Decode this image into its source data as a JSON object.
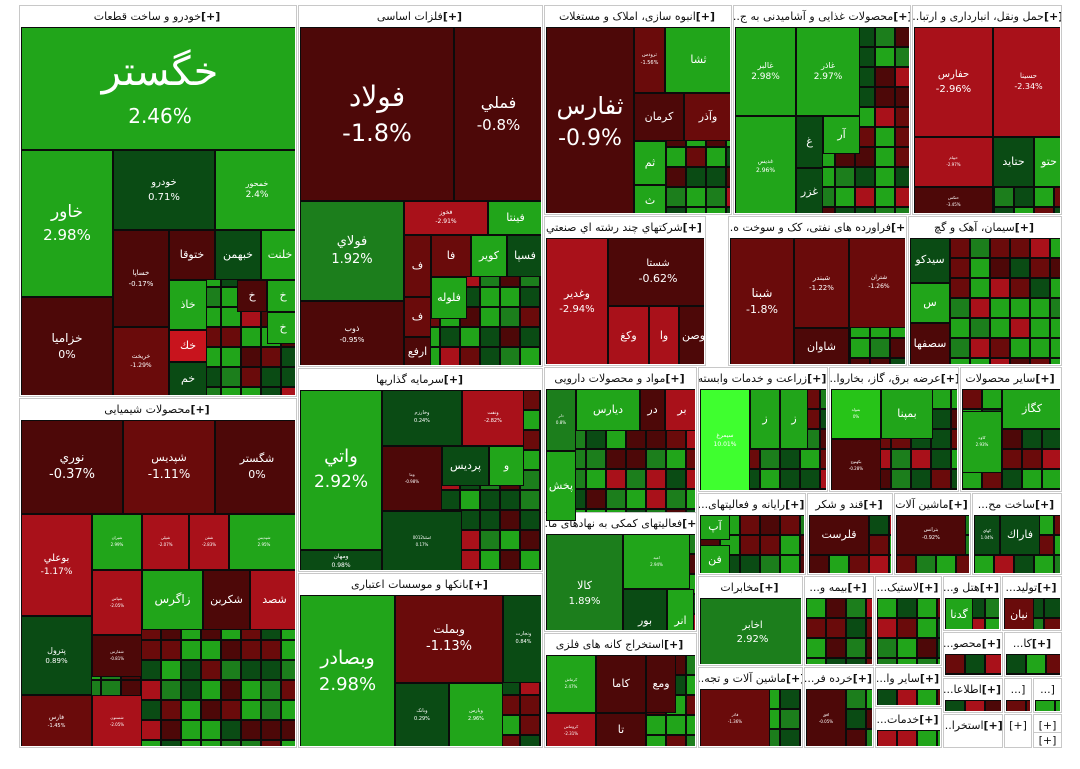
{
  "colors": {
    "dg": "#4d0808",
    "dr": "#6a0b0b",
    "r": "#a9111a",
    "br": "#c8141d",
    "dgn": "#0a4b14",
    "g": "#1c7e1c",
    "lg": "#21a51a",
    "bg": "#27c418",
    "neon": "#3fff2f"
  },
  "sections": [
    {
      "key": "auto",
      "title": "خودرو و ساخت قطعات",
      "plus": "[+]",
      "tiles": [
        {
          "name": "خگستر",
          "pct": "2.46%",
          "c": "lg"
        },
        {
          "name": "خاور",
          "pct": "2.98%",
          "c": "lg"
        },
        {
          "name": "خزاميا",
          "pct": "0%",
          "c": "dg"
        },
        {
          "name": "خودرو",
          "pct": "0.71%",
          "c": "dgn"
        },
        {
          "name": "خمحور",
          "pct": "2.4%",
          "c": "lg"
        },
        {
          "name": "خساپا",
          "pct": "-0.17%",
          "c": "dg"
        },
        {
          "name": "ختوقا",
          "pct": "",
          "c": "dg"
        },
        {
          "name": "خبهمن",
          "pct": "",
          "c": "dgn"
        },
        {
          "name": "خلنت",
          "pct": "",
          "c": "lg"
        },
        {
          "name": "خاذ",
          "pct": "",
          "c": "lg"
        },
        {
          "name": "خ",
          "pct": "",
          "c": "dg"
        },
        {
          "name": "خ",
          "pct": "",
          "c": "lg"
        },
        {
          "name": "خريخت",
          "pct": "-1.29%",
          "c": "dr"
        },
        {
          "name": "خك",
          "pct": "",
          "c": "br"
        },
        {
          "name": "خم",
          "pct": "",
          "c": "dgn"
        },
        {
          "name": "خ",
          "pct": "",
          "c": "lg"
        }
      ]
    },
    {
      "key": "metal",
      "title": "فلزات اساسی",
      "plus": "[+]",
      "tiles": [
        {
          "name": "فولاد",
          "pct": "-1.8%",
          "c": "dg"
        },
        {
          "name": "فملي",
          "pct": "-0.8%",
          "c": "dg"
        },
        {
          "name": "فولاي",
          "pct": "1.92%",
          "c": "g"
        },
        {
          "name": "ذوب",
          "pct": "-0.95%",
          "c": "dg"
        },
        {
          "name": "فخوز",
          "pct": "-2.91%",
          "c": "r"
        },
        {
          "name": "فينتا",
          "pct": "",
          "c": "lg"
        },
        {
          "name": "ف",
          "pct": "",
          "c": "dr"
        },
        {
          "name": "فا",
          "pct": "",
          "c": "dr"
        },
        {
          "name": "كوير",
          "pct": "",
          "c": "lg"
        },
        {
          "name": "فسپا",
          "pct": "",
          "c": "dgn"
        },
        {
          "name": "فلوله",
          "pct": "",
          "c": "lg"
        },
        {
          "name": "ف",
          "pct": "",
          "c": "dr"
        },
        {
          "name": "ارفع",
          "pct": "",
          "c": "dg"
        }
      ]
    },
    {
      "key": "build",
      "title": "انبوه سازی، املاک و مستغلات",
      "plus": "[+]",
      "tiles": [
        {
          "name": "ثفارس",
          "pct": "-0.9%",
          "c": "dg"
        },
        {
          "name": "ثرودس",
          "pct": "-1.56%",
          "c": "dr"
        },
        {
          "name": "ثشا",
          "pct": "",
          "c": "lg"
        },
        {
          "name": "كرمان",
          "pct": "",
          "c": "dg"
        },
        {
          "name": "وآذر",
          "pct": "",
          "c": "dr"
        },
        {
          "name": "ثم",
          "pct": "",
          "c": "lg"
        },
        {
          "name": "ث",
          "pct": "",
          "c": "lg"
        }
      ]
    },
    {
      "key": "food",
      "title": "محصولات غذایی و آشامیدنی به ج...",
      "plus": "[+]",
      "tiles": [
        {
          "name": "غالبر",
          "pct": "2.98%",
          "c": "lg"
        },
        {
          "name": "غاذر",
          "pct": "2.97%",
          "c": "lg"
        },
        {
          "name": "غدیس",
          "pct": "2.96%",
          "c": "lg"
        },
        {
          "name": "غ",
          "pct": "",
          "c": "dgn"
        },
        {
          "name": "آر",
          "pct": "",
          "c": "lg"
        },
        {
          "name": "غزر",
          "pct": "",
          "c": "dgn"
        },
        {
          "name": "غ",
          "pct": "",
          "c": "lg"
        }
      ]
    },
    {
      "key": "trans",
      "title": "حمل ونقل، انبارداری و ارتبا...",
      "plus": "[+]",
      "tiles": [
        {
          "name": "حفارس",
          "pct": "-2.96%",
          "c": "r"
        },
        {
          "name": "حسينا",
          "pct": "-2.34%",
          "c": "r"
        },
        {
          "name": "حپيام",
          "pct": "-2.97%",
          "c": "r"
        },
        {
          "name": "حتايد",
          "pct": "",
          "c": "dgn"
        },
        {
          "name": "حتو",
          "pct": "",
          "c": "lg"
        },
        {
          "name": "حتكس",
          "pct": "-3.45%",
          "c": "dg"
        }
      ]
    },
    {
      "key": "chem",
      "title": "محصولات شیمیایی",
      "plus": "[+]",
      "tiles": [
        {
          "name": "نوري",
          "pct": "-0.37%",
          "c": "dg"
        },
        {
          "name": "شپديس",
          "pct": "-1.11%",
          "c": "dr"
        },
        {
          "name": "شگستر",
          "pct": "0%",
          "c": "dg"
        },
        {
          "name": "بوعلي",
          "pct": "-1.17%",
          "c": "r"
        },
        {
          "name": "پترول",
          "pct": "0.89%",
          "c": "dgn"
        },
        {
          "name": "فارس",
          "pct": "-1.45%",
          "c": "dr"
        },
        {
          "name": "شيران",
          "pct": "2.99%",
          "c": "lg"
        },
        {
          "name": "شپلي",
          "pct": "-2.07%",
          "c": "r"
        },
        {
          "name": "شفن",
          "pct": "-2.83%",
          "c": "r"
        },
        {
          "name": "شپدیس",
          "pct": "2.95%",
          "c": "lg"
        },
        {
          "name": "زاگرس",
          "pct": "",
          "c": "lg"
        },
        {
          "name": "شكربن",
          "pct": "",
          "c": "dg"
        },
        {
          "name": "شصد",
          "pct": "",
          "c": "r"
        },
        {
          "name": "شپاس",
          "pct": "-2.05%",
          "c": "r"
        },
        {
          "name": "شفارس",
          "pct": "-0.81%",
          "c": "dg"
        },
        {
          "name": "شستون",
          "pct": "-2.05%",
          "c": "r"
        }
      ]
    },
    {
      "key": "invest",
      "title": "سرمایه گذاریها",
      "plus": "[+]",
      "tiles": [
        {
          "name": "واتي",
          "pct": "2.92%",
          "c": "lg"
        },
        {
          "name": "وخارزم",
          "pct": "0.24%",
          "c": "dgn"
        },
        {
          "name": "ونفت",
          "pct": "-2.82%",
          "c": "r"
        },
        {
          "name": "ومهان",
          "pct": "0.98%",
          "c": "dgn"
        },
        {
          "name": "وما",
          "pct": "-0.98%",
          "c": "dg"
        },
        {
          "name": "پرديس",
          "pct": "",
          "c": "dgn"
        },
        {
          "name": "و",
          "pct": "",
          "c": "lg"
        },
        {
          "name": "اصلنا0012",
          "pct": "0.17%",
          "c": "dgn"
        }
      ]
    },
    {
      "key": "bank",
      "title": "بانکها و موسسات اعتباری",
      "plus": "[+]",
      "tiles": [
        {
          "name": "وبصادر",
          "pct": "2.98%",
          "c": "lg"
        },
        {
          "name": "وبملت",
          "pct": "-1.13%",
          "c": "dr"
        },
        {
          "name": "وتجارت",
          "pct": "0.84%",
          "c": "dgn"
        },
        {
          "name": "وبانک",
          "pct": "0.29%",
          "c": "dgn"
        },
        {
          "name": "وپارس",
          "pct": "2.96%",
          "c": "lg"
        }
      ]
    },
    {
      "key": "multi",
      "title": "شرکتهاي چند رشته اي صنعتي",
      "plus": "[+]",
      "tiles": [
        {
          "name": "وغدير",
          "pct": "-2.94%",
          "c": "r"
        },
        {
          "name": "شستا",
          "pct": "-0.62%",
          "c": "dg"
        },
        {
          "name": "وكغ",
          "pct": "",
          "c": "r"
        },
        {
          "name": "وا",
          "pct": "",
          "c": "r"
        },
        {
          "name": "وصن",
          "pct": "",
          "c": "dg"
        }
      ]
    },
    {
      "key": "oil",
      "title": "فراورده های نفتی، کک و سوخت ه...",
      "plus": "[+]",
      "tiles": [
        {
          "name": "شبنا",
          "pct": "-1.8%",
          "c": "dr"
        },
        {
          "name": "شبندر",
          "pct": "-1.22%",
          "c": "dr"
        },
        {
          "name": "شتران",
          "pct": "-1.26%",
          "c": "dr"
        },
        {
          "name": "شاوان",
          "pct": "",
          "c": "dg"
        }
      ]
    },
    {
      "key": "cement",
      "title": "سیمان، آهک و گچ",
      "plus": "[+]",
      "tiles": [
        {
          "name": "سيدكو",
          "pct": "",
          "c": "dgn"
        },
        {
          "name": "س",
          "pct": "",
          "c": "lg"
        },
        {
          "name": "سصفها",
          "pct": "",
          "c": "dg"
        }
      ]
    },
    {
      "key": "pharma",
      "title": "مواد و محصولات دارویی",
      "plus": "[+]",
      "tiles": [
        {
          "name": "دلر",
          "pct": "0.8%",
          "c": "g"
        },
        {
          "name": "ديارس",
          "pct": "",
          "c": "lg"
        },
        {
          "name": "در",
          "pct": "",
          "c": "dg"
        },
        {
          "name": "بر",
          "pct": "",
          "c": "r"
        },
        {
          "name": "پخش",
          "pct": "",
          "c": "lg"
        }
      ]
    },
    {
      "key": "agri",
      "title": "زراعت و خدمات وابسته",
      "plus": "[+]",
      "tiles": [
        {
          "name": "سيمرغ",
          "pct": "10.01%",
          "c": "neon"
        },
        {
          "name": "ز",
          "pct": "",
          "c": "lg"
        },
        {
          "name": "ز",
          "pct": "",
          "c": "lg"
        }
      ]
    },
    {
      "key": "power",
      "title": "عرضه برق، گاز، بخاروا...",
      "plus": "[+]",
      "tiles": [
        {
          "name": "بمولد",
          "pct": "0%",
          "c": "bg"
        },
        {
          "name": "بمپنا",
          "pct": "",
          "c": "lg"
        },
        {
          "name": "بكهنوج",
          "pct": "-0.28%",
          "c": "dg"
        }
      ]
    },
    {
      "key": "other",
      "title": "سایر محصولات",
      "plus": "[+]",
      "tiles": [
        {
          "name": "كگاز",
          "pct": "",
          "c": "lg"
        },
        {
          "name": "كاوه",
          "pct": "2.93%",
          "c": "lg"
        }
      ]
    },
    {
      "key": "support",
      "title": "فعالیتهای کمکی به نهادهای ما...",
      "plus": "[+]",
      "tiles": [
        {
          "name": "كالا",
          "pct": "1.89%",
          "c": "g"
        },
        {
          "name": "اميد",
          "pct": "2.94%",
          "c": "lg"
        },
        {
          "name": "انر",
          "pct": "",
          "c": "lg"
        },
        {
          "name": "بور",
          "pct": "",
          "c": "dgn"
        }
      ]
    },
    {
      "key": "software",
      "title": "رایانه و فعالیتهای...",
      "plus": "[+]",
      "tiles": [
        {
          "name": "آپ",
          "pct": "",
          "c": "lg"
        },
        {
          "name": "فن",
          "pct": "",
          "c": "lg"
        }
      ]
    },
    {
      "key": "sugar",
      "title": "قند و شکر",
      "plus": "[+]",
      "tiles": [
        {
          "name": "قلرست",
          "pct": "",
          "c": "dg"
        }
      ]
    },
    {
      "key": "machine",
      "title": "ماشین آلات",
      "plus": "[+]",
      "tiles": [
        {
          "name": "بترانس",
          "pct": "-0.92%",
          "c": "dg"
        }
      ]
    },
    {
      "key": "construct",
      "title": "ساخت مح...",
      "plus": "[+]",
      "tiles": [
        {
          "name": "فاراك",
          "pct": "",
          "c": "dgn"
        },
        {
          "name": "كهاي",
          "pct": "1.04%",
          "c": "dgn"
        }
      ]
    },
    {
      "key": "telecom",
      "title": "مخابرات",
      "plus": "[+]",
      "tiles": [
        {
          "name": "اخابر",
          "pct": "2.92%",
          "c": "g"
        }
      ]
    },
    {
      "key": "metalmine",
      "title": "استخراج کانه های فلزی",
      "plus": "[+]",
      "tiles": [
        {
          "name": "كرماش",
          "pct": "2.47%",
          "c": "lg"
        },
        {
          "name": "كاما",
          "pct": "",
          "c": "dg"
        },
        {
          "name": "ومع",
          "pct": "",
          "c": "dg"
        },
        {
          "name": "كروماس",
          "pct": "-2.31%",
          "c": "r"
        },
        {
          "name": "تا",
          "pct": "",
          "c": "dg"
        }
      ]
    },
    {
      "key": "elecmach",
      "title": "ماشین آلات و تجه...",
      "plus": "[+]",
      "tiles": [
        {
          "name": "فاذر",
          "pct": "-1.36%",
          "c": "dr"
        }
      ]
    },
    {
      "key": "retail",
      "title": "خرده فر...",
      "plus": "[+]",
      "tiles": [
        {
          "name": "افق",
          "pct": "-0.05%",
          "c": "dg"
        }
      ]
    },
    {
      "key": "insure",
      "title": "بیمه و...",
      "plus": "[+]",
      "tiles": []
    },
    {
      "key": "plastic",
      "title": "لاستیک...",
      "plus": "[+]",
      "tiles": []
    },
    {
      "key": "hotel",
      "title": "هتل و...",
      "plus": "[+]",
      "tiles": [
        {
          "name": "گدنا",
          "pct": "",
          "c": "lg"
        }
      ]
    },
    {
      "key": "prod",
      "title": "تولید...",
      "plus": "[+]",
      "tiles": [
        {
          "name": "نيان",
          "pct": "",
          "c": "dr"
        }
      ]
    },
    {
      "key": "other2",
      "title": "سایر وا...",
      "plus": "[+]",
      "tiles": []
    },
    {
      "key": "prod2",
      "title": "محصو...",
      "plus": "[+]",
      "tiles": []
    },
    {
      "key": "ka",
      "title": "كا...",
      "plus": "[+]",
      "tiles": []
    },
    {
      "key": "info",
      "title": "اطلاعا...",
      "plus": "[+]",
      "tiles": []
    },
    {
      "key": "serv",
      "title": "خدمات...",
      "plus": "[+]",
      "tiles": []
    },
    {
      "key": "extr",
      "title": "استخرا...",
      "plus": "[+]",
      "tiles": []
    },
    {
      "key": "s1",
      "title": "[...",
      "plus": "",
      "tiles": []
    },
    {
      "key": "s2",
      "title": "[...",
      "plus": "",
      "tiles": []
    },
    {
      "key": "s3",
      "title": "[+]",
      "plus": "",
      "tiles": []
    },
    {
      "key": "s4",
      "title": "[+]",
      "plus": "",
      "tiles": []
    },
    {
      "key": "s5",
      "title": "[+]",
      "plus": "",
      "tiles": []
    }
  ]
}
